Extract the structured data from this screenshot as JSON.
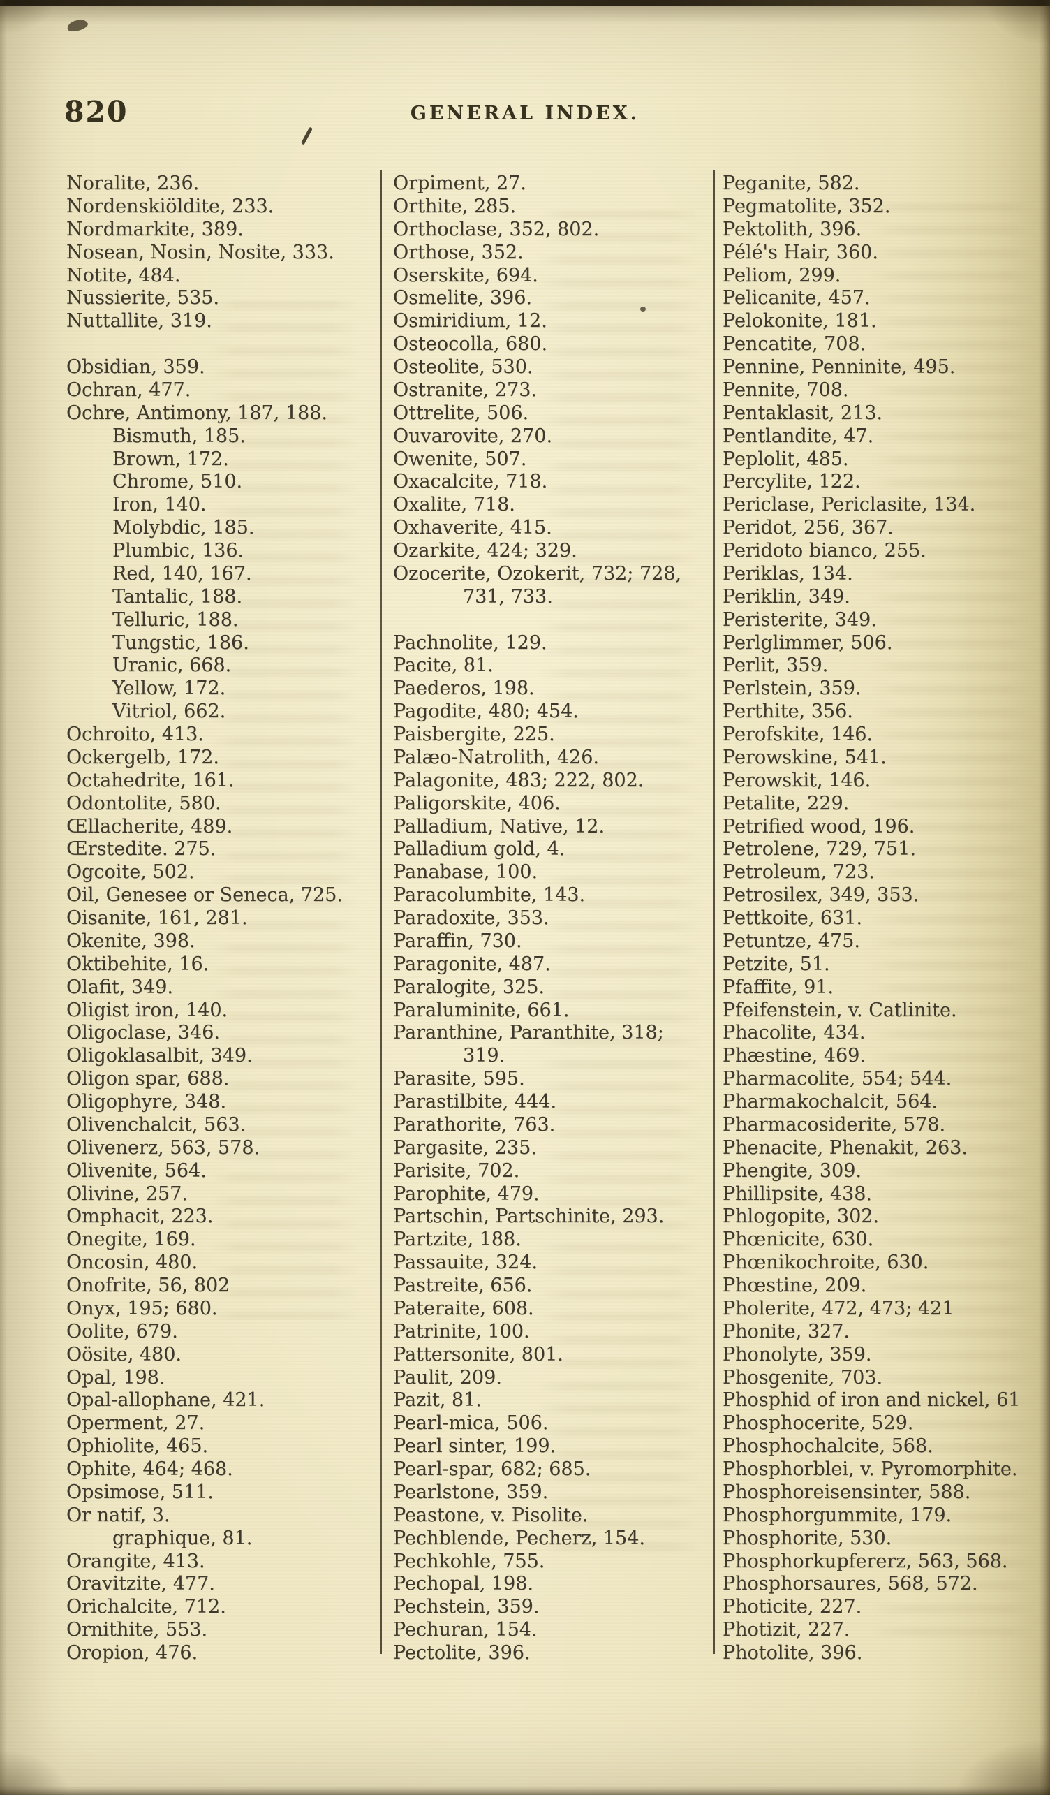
{
  "page": {
    "number": "820",
    "header": "GENERAL INDEX."
  },
  "columns": [
    {
      "entries": [
        {
          "t": "Noralite, 236.",
          "i": 0
        },
        {
          "t": "Nordenskiöldite, 233.",
          "i": 0
        },
        {
          "t": "Nordmarkite, 389.",
          "i": 0
        },
        {
          "t": "Nosean, Nosin, Nosite, 333.",
          "i": 0
        },
        {
          "t": "Notite, 484.",
          "i": 0
        },
        {
          "t": "Nussierite, 535.",
          "i": 0
        },
        {
          "t": "Nuttallite, 319.",
          "i": 0
        },
        {
          "t": "",
          "i": 0
        },
        {
          "t": "Obsidian, 359.",
          "i": 0
        },
        {
          "t": "Ochran, 477.",
          "i": 0
        },
        {
          "t": "Ochre, Antimony, 187, 188.",
          "i": 0
        },
        {
          "t": "Bismuth, 185.",
          "i": 1
        },
        {
          "t": "Brown, 172.",
          "i": 1
        },
        {
          "t": "Chrome, 510.",
          "i": 1
        },
        {
          "t": "Iron, 140.",
          "i": 1
        },
        {
          "t": "Molybdic, 185.",
          "i": 1
        },
        {
          "t": "Plumbic, 136.",
          "i": 1
        },
        {
          "t": "Red, 140, 167.",
          "i": 1
        },
        {
          "t": "Tantalic, 188.",
          "i": 1
        },
        {
          "t": "Telluric, 188.",
          "i": 1
        },
        {
          "t": "Tungstic, 186.",
          "i": 1
        },
        {
          "t": "Uranic, 668.",
          "i": 1
        },
        {
          "t": "Yellow, 172.",
          "i": 1
        },
        {
          "t": "Vitriol, 662.",
          "i": 1
        },
        {
          "t": "Ochroito, 413.",
          "i": 0
        },
        {
          "t": "Ockergelb, 172.",
          "i": 0
        },
        {
          "t": "Octahedrite, 161.",
          "i": 0
        },
        {
          "t": "Odontolite, 580.",
          "i": 0
        },
        {
          "t": "Œllacherite, 489.",
          "i": 0
        },
        {
          "t": "Œrstedite. 275.",
          "i": 0
        },
        {
          "t": "Ogcoite, 502.",
          "i": 0
        },
        {
          "t": "Oil, Genesee or Seneca, 725.",
          "i": 0
        },
        {
          "t": "Oisanite, 161, 281.",
          "i": 0
        },
        {
          "t": "Okenite, 398.",
          "i": 0
        },
        {
          "t": "Oktibehite, 16.",
          "i": 0
        },
        {
          "t": "Olafit, 349.",
          "i": 0
        },
        {
          "t": "Oligist iron, 140.",
          "i": 0
        },
        {
          "t": "Oligoclase, 346.",
          "i": 0
        },
        {
          "t": "Oligoklasalbit, 349.",
          "i": 0
        },
        {
          "t": "Oligon spar, 688.",
          "i": 0
        },
        {
          "t": "Oligophyre, 348.",
          "i": 0
        },
        {
          "t": "Olivenchalcit, 563.",
          "i": 0
        },
        {
          "t": "Olivenerz, 563, 578.",
          "i": 0
        },
        {
          "t": "Olivenite, 564.",
          "i": 0
        },
        {
          "t": "Olivine, 257.",
          "i": 0
        },
        {
          "t": "Omphacit, 223.",
          "i": 0
        },
        {
          "t": "Onegite, 169.",
          "i": 0
        },
        {
          "t": "Oncosin, 480.",
          "i": 0
        },
        {
          "t": "Onofrite, 56, 802",
          "i": 0
        },
        {
          "t": "Onyx, 195; 680.",
          "i": 0
        },
        {
          "t": "Oolite, 679.",
          "i": 0
        },
        {
          "t": "Oösite, 480.",
          "i": 0
        },
        {
          "t": "Opal, 198.",
          "i": 0
        },
        {
          "t": "Opal-allophane, 421.",
          "i": 0
        },
        {
          "t": "Operment, 27.",
          "i": 0
        },
        {
          "t": "Ophiolite, 465.",
          "i": 0
        },
        {
          "t": "Ophite, 464; 468.",
          "i": 0
        },
        {
          "t": "Opsimose, 511.",
          "i": 0
        },
        {
          "t": "Or natif, 3.",
          "i": 0
        },
        {
          "t": "graphique, 81.",
          "i": 1
        },
        {
          "t": "Orangite, 413.",
          "i": 0
        },
        {
          "t": "Oravitzite, 477.",
          "i": 0
        },
        {
          "t": "Orichalcite, 712.",
          "i": 0
        },
        {
          "t": "Ornithite, 553.",
          "i": 0
        },
        {
          "t": "Oropion, 476.",
          "i": 0
        }
      ]
    },
    {
      "entries": [
        {
          "t": "Orpiment, 27.",
          "i": 0
        },
        {
          "t": "Orthite, 285.",
          "i": 0
        },
        {
          "t": "Orthoclase, 352, 802.",
          "i": 0
        },
        {
          "t": "Orthose, 352.",
          "i": 0
        },
        {
          "t": "Oserskite, 694.",
          "i": 0
        },
        {
          "t": "Osmelite, 396.",
          "i": 0
        },
        {
          "t": "Osmiridium, 12.",
          "i": 0
        },
        {
          "t": "Osteocolla, 680.",
          "i": 0
        },
        {
          "t": "Osteolite, 530.",
          "i": 0
        },
        {
          "t": "Ostranite, 273.",
          "i": 0
        },
        {
          "t": "Ottrelite, 506.",
          "i": 0
        },
        {
          "t": "Ouvarovite, 270.",
          "i": 0
        },
        {
          "t": "Owenite, 507.",
          "i": 0
        },
        {
          "t": "Oxacalcite, 718.",
          "i": 0
        },
        {
          "t": "Oxalite, 718.",
          "i": 0
        },
        {
          "t": "Oxhaverite, 415.",
          "i": 0
        },
        {
          "t": "Ozarkite, 424; 329.",
          "i": 0
        },
        {
          "t": "Ozocerite, Ozokerit, 732; 728,",
          "i": 0
        },
        {
          "t": "731, 733.",
          "i": 2
        },
        {
          "t": "",
          "i": 0
        },
        {
          "t": "Pachnolite, 129.",
          "i": 0
        },
        {
          "t": "Pacite, 81.",
          "i": 0
        },
        {
          "t": "Paederos, 198.",
          "i": 0
        },
        {
          "t": "Pagodite, 480; 454.",
          "i": 0
        },
        {
          "t": "Paisbergite, 225.",
          "i": 0
        },
        {
          "t": "Palæo-Natrolith, 426.",
          "i": 0
        },
        {
          "t": "Palagonite, 483; 222, 802.",
          "i": 0
        },
        {
          "t": "Paligorskite, 406.",
          "i": 0
        },
        {
          "t": "Palladium, Native, 12.",
          "i": 0
        },
        {
          "t": "Palladium gold, 4.",
          "i": 0
        },
        {
          "t": "Panabase, 100.",
          "i": 0
        },
        {
          "t": "Paracolumbite, 143.",
          "i": 0
        },
        {
          "t": "Paradoxite, 353.",
          "i": 0
        },
        {
          "t": "Paraffin, 730.",
          "i": 0
        },
        {
          "t": "Paragonite, 487.",
          "i": 0
        },
        {
          "t": "Paralogite, 325.",
          "i": 0
        },
        {
          "t": "Paraluminite, 661.",
          "i": 0
        },
        {
          "t": "Paranthine, Paranthite, 318;",
          "i": 0
        },
        {
          "t": "319.",
          "i": 2
        },
        {
          "t": "Parasite, 595.",
          "i": 0
        },
        {
          "t": "Parastilbite, 444.",
          "i": 0
        },
        {
          "t": "Parathorite, 763.",
          "i": 0
        },
        {
          "t": "Pargasite, 235.",
          "i": 0
        },
        {
          "t": "Parisite, 702.",
          "i": 0
        },
        {
          "t": "Parophite, 479.",
          "i": 0
        },
        {
          "t": "Partschin, Partschinite, 293.",
          "i": 0
        },
        {
          "t": "Partzite, 188.",
          "i": 0
        },
        {
          "t": "Passauite, 324.",
          "i": 0
        },
        {
          "t": "Pastreite, 656.",
          "i": 0
        },
        {
          "t": "Pateraite, 608.",
          "i": 0
        },
        {
          "t": "Patrinite, 100.",
          "i": 0
        },
        {
          "t": "Pattersonite, 801.",
          "i": 0
        },
        {
          "t": "Paulit, 209.",
          "i": 0
        },
        {
          "t": "Pazit, 81.",
          "i": 0
        },
        {
          "t": "Pearl-mica, 506.",
          "i": 0
        },
        {
          "t": "Pearl sinter, 199.",
          "i": 0
        },
        {
          "t": "Pearl-spar, 682; 685.",
          "i": 0
        },
        {
          "t": "Pearlstone, 359.",
          "i": 0
        },
        {
          "t": "Peastone, v. Pisolite.",
          "i": 0
        },
        {
          "t": "Pechblende, Pecherz, 154.",
          "i": 0
        },
        {
          "t": "Pechkohle, 755.",
          "i": 0
        },
        {
          "t": "Pechopal, 198.",
          "i": 0
        },
        {
          "t": "Pechstein, 359.",
          "i": 0
        },
        {
          "t": "Pechuran, 154.",
          "i": 0
        },
        {
          "t": "Pectolite, 396.",
          "i": 0
        }
      ]
    },
    {
      "entries": [
        {
          "t": "Peganite, 582.",
          "i": 0
        },
        {
          "t": "Pegmatolite, 352.",
          "i": 0
        },
        {
          "t": "Pektolith, 396.",
          "i": 0
        },
        {
          "t": "Pélé's Hair, 360.",
          "i": 0
        },
        {
          "t": "Peliom, 299.",
          "i": 0
        },
        {
          "t": "Pelicanite, 457.",
          "i": 0
        },
        {
          "t": "Pelokonite, 181.",
          "i": 0
        },
        {
          "t": "Pencatite, 708.",
          "i": 0
        },
        {
          "t": "Pennine, Penninite, 495.",
          "i": 0
        },
        {
          "t": "Pennite, 708.",
          "i": 0
        },
        {
          "t": "Pentaklasit, 213.",
          "i": 0
        },
        {
          "t": "Pentlandite, 47.",
          "i": 0
        },
        {
          "t": "Peplolit, 485.",
          "i": 0
        },
        {
          "t": "Percylite, 122.",
          "i": 0
        },
        {
          "t": "Periclase, Periclasite, 134.",
          "i": 0
        },
        {
          "t": "Peridot, 256, 367.",
          "i": 0
        },
        {
          "t": "Peridoto bianco, 255.",
          "i": 0
        },
        {
          "t": "Periklas, 134.",
          "i": 0
        },
        {
          "t": "Periklin, 349.",
          "i": 0
        },
        {
          "t": "Peristerite, 349.",
          "i": 0
        },
        {
          "t": "Perlglimmer, 506.",
          "i": 0
        },
        {
          "t": "Perlit, 359.",
          "i": 0
        },
        {
          "t": "Perlstein, 359.",
          "i": 0
        },
        {
          "t": "Perthite, 356.",
          "i": 0
        },
        {
          "t": "Perofskite, 146.",
          "i": 0
        },
        {
          "t": "Perowskine, 541.",
          "i": 0
        },
        {
          "t": "Perowskit, 146.",
          "i": 0
        },
        {
          "t": "Petalite, 229.",
          "i": 0
        },
        {
          "t": "Petrified wood, 196.",
          "i": 0
        },
        {
          "t": "Petrolene, 729, 751.",
          "i": 0
        },
        {
          "t": "Petroleum, 723.",
          "i": 0
        },
        {
          "t": "Petrosilex, 349, 353.",
          "i": 0
        },
        {
          "t": "Pettkoite, 631.",
          "i": 0
        },
        {
          "t": "Petuntze, 475.",
          "i": 0
        },
        {
          "t": "Petzite, 51.",
          "i": 0
        },
        {
          "t": "Pfaffite, 91.",
          "i": 0
        },
        {
          "t": "Pfeifenstein, v. Catlinite.",
          "i": 0
        },
        {
          "t": "Phacolite, 434.",
          "i": 0
        },
        {
          "t": "Phæstine, 469.",
          "i": 0
        },
        {
          "t": "Pharmacolite, 554; 544.",
          "i": 0
        },
        {
          "t": "Pharmakochalcit, 564.",
          "i": 0
        },
        {
          "t": "Pharmacosiderite, 578.",
          "i": 0
        },
        {
          "t": "Phenacite, Phenakit, 263.",
          "i": 0
        },
        {
          "t": "Phengite, 309.",
          "i": 0
        },
        {
          "t": "Phillipsite, 438.",
          "i": 0
        },
        {
          "t": "Phlogopite, 302.",
          "i": 0
        },
        {
          "t": "Phœnicite, 630.",
          "i": 0
        },
        {
          "t": "Phœnikochroite, 630.",
          "i": 0
        },
        {
          "t": "Phœstine, 209.",
          "i": 0
        },
        {
          "t": "Pholerite, 472, 473; 421",
          "i": 0
        },
        {
          "t": "Phonite, 327.",
          "i": 0
        },
        {
          "t": "Phonolyte, 359.",
          "i": 0
        },
        {
          "t": "Phosgenite, 703.",
          "i": 0
        },
        {
          "t": "Phosphid of iron and nickel, 61",
          "i": 0
        },
        {
          "t": "Phosphocerite, 529.",
          "i": 0
        },
        {
          "t": "Phosphochalcite, 568.",
          "i": 0
        },
        {
          "t": "Phosphorblei, v. Pyromorphite.",
          "i": 0
        },
        {
          "t": "Phosphoreisensinter, 588.",
          "i": 0
        },
        {
          "t": "Phosphorgummite, 179.",
          "i": 0
        },
        {
          "t": "Phosphorite, 530.",
          "i": 0
        },
        {
          "t": "Phosphorkupfererz, 563, 568.",
          "i": 0
        },
        {
          "t": "Phosphorsaures, 568, 572.",
          "i": 0
        },
        {
          "t": "Photicite, 227.",
          "i": 0
        },
        {
          "t": "Photizit, 227.",
          "i": 0
        },
        {
          "t": "Photolite, 396.",
          "i": 0
        }
      ]
    }
  ],
  "colors": {
    "paper": "#ece4bf",
    "ink": "#3e392c",
    "rule": "#474033",
    "edge": "#2b2315"
  }
}
